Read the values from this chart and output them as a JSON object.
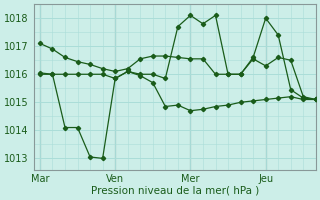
{
  "bg_color": "#cceee8",
  "grid_color": "#aaddd8",
  "line_color": "#1a5c1a",
  "marker_color": "#1a5c1a",
  "xlabel": "Pression niveau de la mer( hPa )",
  "ylim": [
    1012.6,
    1018.5
  ],
  "yticks": [
    1013,
    1014,
    1015,
    1016,
    1017,
    1018
  ],
  "xtick_labels": [
    "Mar",
    "Ven",
    "Mer",
    "Jeu"
  ],
  "xtick_positions": [
    0,
    36,
    72,
    108
  ],
  "vline_positions": [
    0,
    36,
    72,
    108
  ],
  "xlim": [
    -3,
    132
  ],
  "series1_x": [
    0,
    6,
    12,
    18,
    24,
    30,
    36,
    42,
    48,
    54,
    60,
    66,
    72,
    78,
    84,
    90,
    96,
    102,
    108,
    114,
    120,
    126,
    132
  ],
  "series1_y": [
    1017.1,
    1016.9,
    1016.6,
    1016.45,
    1016.35,
    1016.2,
    1016.1,
    1016.2,
    1016.55,
    1016.65,
    1016.65,
    1016.6,
    1016.55,
    1016.55,
    1016.0,
    1016.0,
    1016.0,
    1016.55,
    1016.3,
    1016.6,
    1016.5,
    1015.2,
    1015.1
  ],
  "series2_x": [
    0,
    6,
    12,
    18,
    24,
    30,
    36,
    42,
    48,
    54,
    60,
    66,
    72,
    78,
    84,
    90,
    96,
    102,
    108,
    114,
    120,
    126,
    132
  ],
  "series2_y": [
    1016.0,
    1016.0,
    1016.0,
    1016.0,
    1016.0,
    1016.0,
    1015.85,
    1016.1,
    1016.0,
    1016.0,
    1015.85,
    1017.7,
    1018.1,
    1017.8,
    1018.1,
    1016.0,
    1016.0,
    1016.6,
    1018.0,
    1017.4,
    1015.45,
    1015.15,
    1015.1
  ],
  "series3_x": [
    0,
    6,
    12,
    18,
    24,
    30,
    36,
    42,
    48,
    54,
    60,
    66,
    72,
    78,
    84,
    90,
    96,
    102,
    108,
    114,
    120,
    126,
    132
  ],
  "series3_y": [
    1016.05,
    1016.0,
    1014.1,
    1014.1,
    1013.05,
    1013.0,
    1015.85,
    1016.1,
    1015.95,
    1015.7,
    1014.85,
    1014.9,
    1014.7,
    1014.75,
    1014.85,
    1014.9,
    1015.0,
    1015.05,
    1015.1,
    1015.15,
    1015.2,
    1015.1,
    1015.1
  ]
}
